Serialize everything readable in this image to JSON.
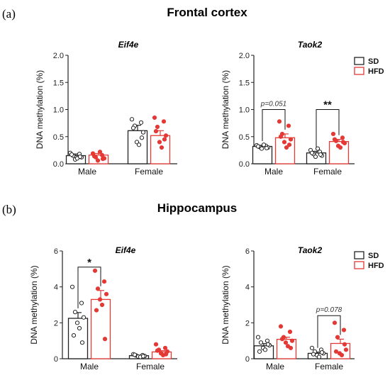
{
  "figure": {
    "panel_a_label": "(a)",
    "panel_a_title": "Frontal cortex",
    "panel_b_label": "(b)",
    "panel_b_title": "Hippocampus"
  },
  "colors": {
    "SD": "#222222",
    "HFD": "#e53935"
  },
  "chart_data": [
    {
      "type": "bar",
      "title": "Eif4e",
      "region": "Frontal cortex",
      "ylabel": "DNA methylation (%)",
      "ylim": [
        0,
        2.0
      ],
      "yticks": [
        "0.0",
        "0.5",
        "1.0",
        "1.5",
        "2.0"
      ],
      "categories": [
        "Male",
        "Female"
      ],
      "legend": false,
      "series": [
        {
          "name": "SD",
          "means": [
            0.15,
            0.61
          ],
          "sem": [
            0.03,
            0.1
          ],
          "points": [
            [
              0.2,
              0.18,
              0.15,
              0.12,
              0.08,
              0.1,
              0.17,
              0.13
            ],
            [
              0.82,
              0.76,
              0.7,
              0.58,
              0.4,
              0.35,
              0.66,
              0.48
            ]
          ]
        },
        {
          "name": "HFD",
          "means": [
            0.16,
            0.52
          ],
          "sem": [
            0.03,
            0.09
          ],
          "points": [
            [
              0.19,
              0.16,
              0.12,
              0.1,
              0.06,
              0.22,
              0.14,
              0.09
            ],
            [
              0.85,
              0.78,
              0.68,
              0.52,
              0.4,
              0.3,
              0.6,
              0.45
            ]
          ]
        }
      ],
      "annotations": []
    },
    {
      "type": "bar",
      "title": "Taok2",
      "region": "Frontal cortex",
      "ylabel": "DNA methylation (%)",
      "ylim": [
        0,
        2.0
      ],
      "yticks": [
        "0.0",
        "0.5",
        "1.0",
        "1.5",
        "2.0"
      ],
      "categories": [
        "Male",
        "Female"
      ],
      "legend": true,
      "legend_position": "top-right",
      "series": [
        {
          "name": "SD",
          "means": [
            0.32,
            0.2
          ],
          "sem": [
            0.02,
            0.03
          ],
          "points": [
            [
              0.34,
              0.33,
              0.31,
              0.3,
              0.28,
              0.35,
              0.32,
              0.29
            ],
            [
              0.25,
              0.22,
              0.18,
              0.15,
              0.13,
              0.28,
              0.2,
              0.17
            ]
          ]
        },
        {
          "name": "HFD",
          "means": [
            0.48,
            0.41
          ],
          "sem": [
            0.07,
            0.04
          ],
          "points": [
            [
              0.78,
              0.7,
              0.55,
              0.45,
              0.4,
              0.3,
              0.5,
              0.35
            ],
            [
              0.55,
              0.48,
              0.42,
              0.38,
              0.33,
              0.3,
              0.45,
              0.4
            ]
          ]
        }
      ],
      "annotations": [
        {
          "category": "Male",
          "text": "p=0.051",
          "style": "p",
          "y": 1.0
        },
        {
          "category": "Female",
          "text": "**",
          "style": "star",
          "y": 1.0
        }
      ]
    },
    {
      "type": "bar",
      "title": "Eif4e",
      "region": "Hippocampus",
      "ylabel": "DNA methylation (%)",
      "ylim": [
        0,
        6
      ],
      "yticks": [
        "0",
        "2",
        "4",
        "6"
      ],
      "categories": [
        "Male",
        "Female"
      ],
      "legend": false,
      "series": [
        {
          "name": "SD",
          "means": [
            2.25,
            0.17
          ],
          "sem": [
            0.32,
            0.03
          ],
          "points": [
            [
              4.0,
              3.1,
              2.6,
              2.3,
              2.0,
              1.7,
              1.3,
              0.9
            ],
            [
              0.25,
              0.2,
              0.18,
              0.15,
              0.12,
              0.1,
              0.22,
              0.14
            ]
          ]
        },
        {
          "name": "HFD",
          "means": [
            3.3,
            0.38
          ],
          "sem": [
            0.5,
            0.07
          ],
          "points": [
            [
              4.9,
              4.3,
              3.9,
              3.6,
              3.3,
              3.0,
              2.7,
              1.1
            ],
            [
              0.8,
              0.6,
              0.5,
              0.4,
              0.3,
              0.2,
              0.45,
              0.25
            ]
          ]
        }
      ],
      "annotations": [
        {
          "category": "Male",
          "text": "*",
          "style": "star",
          "y": 5.1
        }
      ]
    },
    {
      "type": "bar",
      "title": "Taok2",
      "region": "Hippocampus",
      "ylabel": "DNA methylation (%)",
      "ylim": [
        0,
        6
      ],
      "yticks": [
        "0",
        "2",
        "4",
        "6"
      ],
      "categories": [
        "Male",
        "Female"
      ],
      "legend": true,
      "legend_position": "top-right",
      "series": [
        {
          "name": "SD",
          "means": [
            0.72,
            0.3
          ],
          "sem": [
            0.12,
            0.07
          ],
          "points": [
            [
              1.2,
              1.0,
              0.9,
              0.75,
              0.6,
              0.5,
              0.4,
              0.8
            ],
            [
              0.6,
              0.5,
              0.4,
              0.3,
              0.2,
              0.1,
              0.25,
              0.35
            ]
          ]
        },
        {
          "name": "HFD",
          "means": [
            1.08,
            0.85
          ],
          "sem": [
            0.12,
            0.24
          ],
          "points": [
            [
              1.8,
              1.5,
              1.2,
              1.0,
              0.9,
              0.7,
              1.1,
              0.6
            ],
            [
              2.0,
              1.6,
              1.2,
              0.5,
              0.3,
              0.2,
              0.4,
              0.8
            ]
          ]
        }
      ],
      "annotations": [
        {
          "category": "Female",
          "text": "p=0.078",
          "style": "p",
          "y": 2.4
        }
      ]
    }
  ]
}
